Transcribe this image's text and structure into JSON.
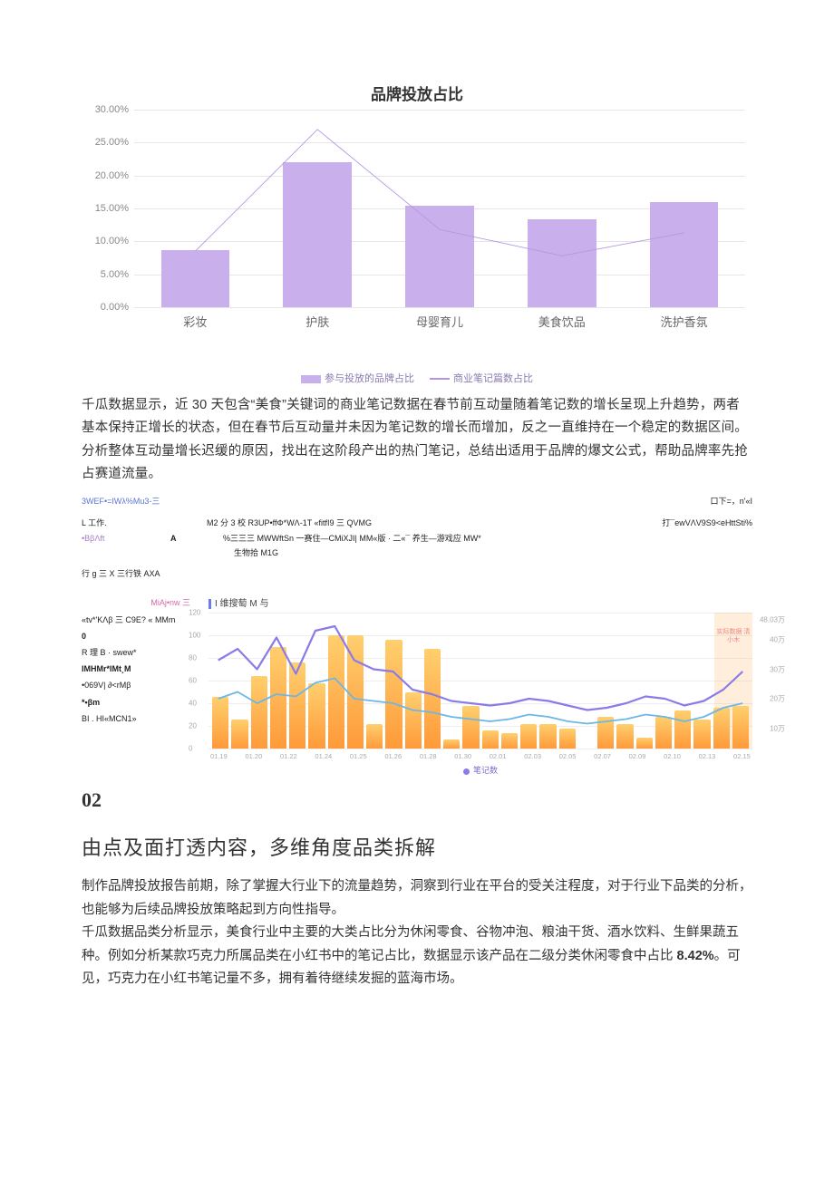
{
  "chart1": {
    "type": "bar+line",
    "title": "品牌投放占比",
    "title_fontsize": 17,
    "categories": [
      "彩妆",
      "护肤",
      "母婴育儿",
      "美食饮品",
      "洗护香氛"
    ],
    "bar_values": [
      8.7,
      22.0,
      15.4,
      13.4,
      16.0
    ],
    "line_values": [
      8.5,
      27.0,
      11.8,
      7.8,
      11.3
    ],
    "bar_color": "#c9b0ec",
    "line_color": "#b497e0",
    "line_width": 2,
    "ylim": [
      0,
      30
    ],
    "ytick_step": 5,
    "ytick_format": "percent_2dp",
    "grid_color": "#e6e6e6",
    "xlabel_fontsize": 13,
    "ylabel_fontsize": 11,
    "legend": {
      "items": [
        "参与投放的品牌占比",
        "商业笔记篇数占比"
      ],
      "color": "#8a7bb0",
      "fontsize": 11
    }
  },
  "para1": "千瓜数据显示，近 30 天包含“美食”关键词的商业笔记数据在春节前互动量随着笔记数的增长呈现上升趋势，两者基本保持正增长的状态，但在春节后互动量并未因为笔记数的增长而增加，反之一直维持在一个稳定的数据区间。分析整体互动量增长迟缓的原因，找出在这阶段产出的热门笔记，总结出适用于品牌的爆文公式，帮助品牌率先抢占赛道流量。",
  "noise": {
    "row_top": {
      "left": "3WEF•=IWλ%Mu3-三",
      "right": "口下=，n'«I"
    },
    "row1": {
      "c1": "L 工作.",
      "c2": "M2 分 3 校 R3UP•ffΦ*WΛ-1T  «fitfI9 三 QVMG",
      "c3": "打¯ewVΛV9S9<eHttSti%"
    },
    "row2": {
      "c1": "•BβΛft",
      "c1b": "A",
      "c2": "%三三三 MWWftSn 一赛住—CMiXJI| MM«版 · 二«¯ 养生—游戏应 MW*"
    },
    "row3": {
      "c2": "生物拾 M1G"
    },
    "row4": {
      "c1": "行 g 三 X 三行铁 AXA"
    }
  },
  "chart2_side": [
    {
      "text": "MiAj•nw 三",
      "cls": "c-pink",
      "align": "right"
    },
    {
      "text": "«tv*'KΛβ 三 C9E?  « MMm",
      "cls": "c-black"
    },
    {
      "text": "0",
      "cls": "c-black bold"
    },
    {
      "text": "R 理 B · swew*",
      "cls": "c-black"
    },
    {
      "text": "IMHMr*IMt¸M",
      "cls": "c-black bold"
    },
    {
      "text": "•069V| ∂<rMβ",
      "cls": "c-black"
    },
    {
      "text": "*•βm",
      "cls": "c-black bold"
    },
    {
      "text": "BI . HI«MCN1»",
      "cls": "c-black"
    }
  ],
  "chart2": {
    "type": "bar+2line",
    "title": "I 维搜萄 M 与",
    "bar_values": [
      46,
      26,
      64,
      90,
      76,
      58,
      100,
      100,
      22,
      96,
      50,
      88,
      8,
      38,
      16,
      14,
      22,
      22,
      18,
      0,
      28,
      22,
      10,
      28,
      34,
      26,
      36,
      38
    ],
    "bar_gradient_top": "#ffcf6e",
    "bar_gradient_bottom": "#ff9a3a",
    "line1_color": "#8a7be8",
    "line1_width": 2.2,
    "line1_values": [
      78,
      88,
      70,
      98,
      66,
      104,
      108,
      78,
      70,
      68,
      52,
      48,
      42,
      40,
      38,
      40,
      44,
      42,
      38,
      34,
      36,
      40,
      46,
      44,
      38,
      42,
      52,
      68
    ],
    "line2_color": "#6bb7e6",
    "line2_width": 1.8,
    "line2_values": [
      44,
      50,
      40,
      48,
      46,
      58,
      62,
      44,
      42,
      40,
      34,
      32,
      28,
      26,
      24,
      26,
      30,
      28,
      24,
      22,
      24,
      26,
      30,
      28,
      24,
      28,
      36,
      40
    ],
    "y_left_ticks": [
      0,
      20,
      40,
      60,
      80,
      100,
      120
    ],
    "y_right_labels": [
      "48.03万",
      "40万",
      "30万",
      "20万",
      "10万"
    ],
    "y_right_positions": [
      5,
      20,
      42,
      63,
      85
    ],
    "grid_color": "#eeeeee",
    "x_labels": [
      "01.19",
      "01.20",
      "01.22",
      "01.24",
      "01.25",
      "01.26",
      "01.28",
      "01.30",
      "02.01",
      "02.03",
      "02.05",
      "02.07",
      "02.09",
      "02.10",
      "02.13",
      "02.15"
    ],
    "highlight": {
      "start_pct": 93,
      "width_pct": 7,
      "color": "rgba(255,160,60,0.18)",
      "label": "实际数据\n清小木"
    },
    "legend": {
      "label": "笔记数",
      "dot_color": "#8a7be8",
      "fontsize": 9
    }
  },
  "section": {
    "num": "02",
    "heading": "由点及面打透内容，多维角度品类拆解",
    "p1": "制作品牌投放报告前期，除了掌握大行业下的流量趋势，洞察到行业在平台的受关注程度，对于行业下品类的分析，也能够为后续品牌投放策略起到方向性指导。",
    "p2_a": "千瓜数据品类分析显示，美食行业中主要的大类占比分为休闲零食、谷物冲泡、粮油干货、酒水饮料、生鲜果蔬五种。例如分析某款巧克力所属品类在小红书中的笔记占比，数据显示该产品在二级分类休闲零食中占比 ",
    "p2_bold": "8.42%",
    "p2_b": "。可见，巧克力在小红书笔记量不多，拥有着待继续发掘的蓝海市场。"
  }
}
